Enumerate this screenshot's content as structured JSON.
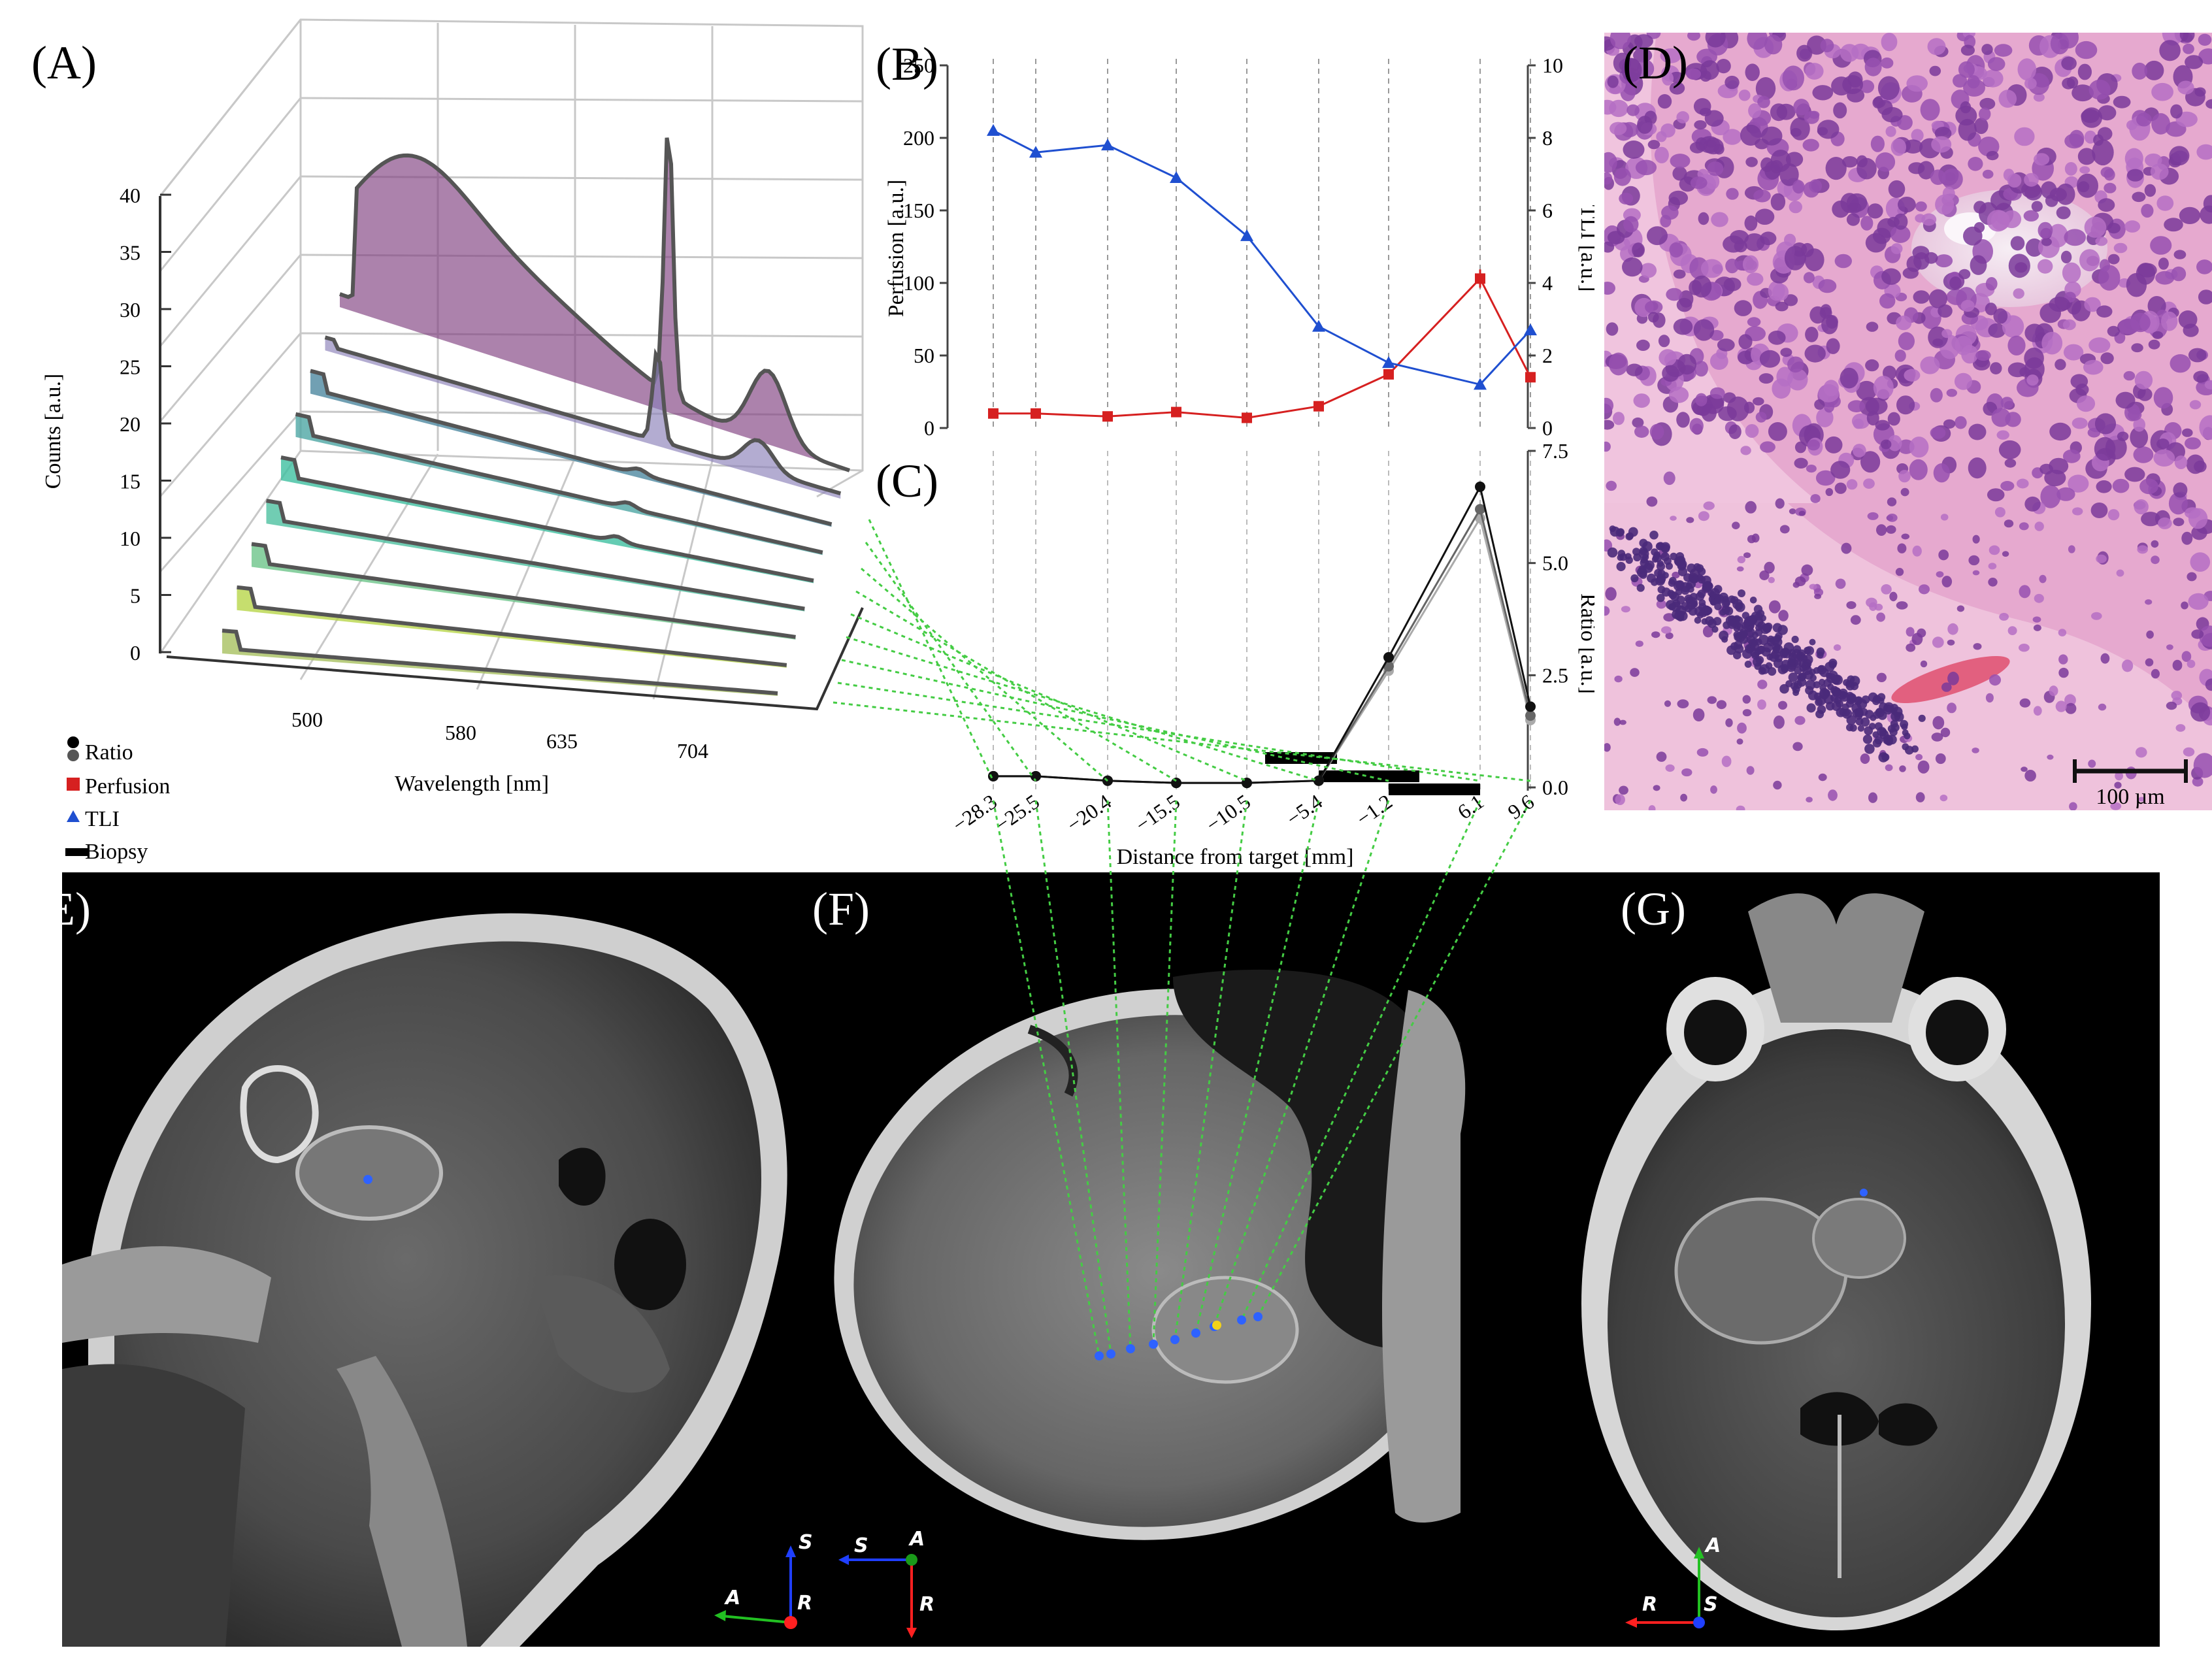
{
  "panel_labels": {
    "A": "(A)",
    "B": "(B)",
    "C": "(C)",
    "D": "(D)",
    "E": "(E)",
    "F": "(F)",
    "G": "(G)"
  },
  "legend": [
    {
      "label": "Ratio",
      "symbol": "circle",
      "color": "#222222"
    },
    {
      "label": "Perfusion",
      "symbol": "square",
      "color": "#d62020"
    },
    {
      "label": "TLI",
      "symbol": "triangle",
      "color": "#1f4fd0"
    },
    {
      "label": "Biopsy",
      "symbol": "bar",
      "color": "#000000"
    }
  ],
  "scale_bar": {
    "label": "100 µm"
  },
  "orientation": {
    "E": {
      "up": "S",
      "left": "A",
      "center": "R"
    },
    "F": {
      "left": "S",
      "center": "A",
      "down": "R"
    },
    "G": {
      "up": "A",
      "left": "R",
      "center": "S"
    }
  },
  "chart_data": [
    {
      "panel": "A",
      "type": "area",
      "xlabel": "Wavelength [nm]",
      "ylabel": "Counts [a.u.]",
      "x_ticks": [
        "500",
        "580",
        "635",
        "704"
      ],
      "y_ticks": [
        "0",
        "5",
        "10",
        "15",
        "20",
        "25",
        "30",
        "35",
        "40"
      ],
      "ylim": [
        0,
        40
      ],
      "series_colors": [
        "#7f3f7f",
        "#8a7fb8",
        "#4e88a0",
        "#4ea6a4",
        "#3fbfa0",
        "#4ec0a0",
        "#6dc489",
        "#b8d64a",
        "#a8c060"
      ]
    },
    {
      "panel": "B",
      "type": "line",
      "ylabel": "Perfusion [a.u.]",
      "y2label": "TLI [a.u.]",
      "ylim": [
        0,
        250
      ],
      "y2lim": [
        0,
        10
      ],
      "y_ticks": [
        "0",
        "50",
        "100",
        "150",
        "200",
        "250"
      ],
      "y2_ticks": [
        "0",
        "2",
        "4",
        "6",
        "8",
        "10"
      ],
      "series": [
        {
          "name": "Perfusion",
          "axis": "left",
          "color": "#d62020",
          "values": [
            10,
            10,
            8,
            11,
            7,
            15,
            37,
            103,
            35
          ]
        },
        {
          "name": "TLI",
          "axis": "right",
          "color": "#1f4fd0",
          "values": [
            8.2,
            7.6,
            7.8,
            6.9,
            5.3,
            2.8,
            1.8,
            1.2,
            2.7
          ]
        }
      ]
    },
    {
      "panel": "C",
      "type": "line",
      "xlabel": "Distance from target [mm]",
      "ylabel": "Ratio [a.u.]",
      "x": [
        -28.3,
        -25.5,
        -20.4,
        -15.5,
        -10.5,
        -5.4,
        -1.2,
        6.1,
        9.6
      ],
      "x_ticks": [
        "−28.3",
        "−25.5",
        "−20.4",
        "−15.5",
        "−10.5",
        "−5.4",
        "−1.2",
        "6.1",
        "9.6"
      ],
      "ylim": [
        0,
        7.5
      ],
      "y_ticks": [
        "0.0",
        "2.5",
        "5.0",
        "7.5"
      ],
      "series": [
        {
          "name": "Ratio",
          "color": "#111111",
          "values": [
            0.25,
            0.25,
            0.15,
            0.1,
            0.1,
            0.15,
            2.9,
            6.7,
            1.8
          ]
        },
        {
          "name": "Ratio",
          "color": "#666666",
          "values": [
            0.25,
            0.25,
            0.15,
            0.1,
            0.1,
            0.15,
            2.7,
            6.2,
            1.6
          ]
        },
        {
          "name": "Ratio",
          "color": "#aaaaaa",
          "values": [
            0.25,
            0.25,
            0.15,
            0.1,
            0.1,
            0.15,
            2.6,
            6.0,
            1.5
          ]
        }
      ],
      "biopsy": [
        [
          -10.5,
          -5.4
        ],
        [
          -5.4,
          -1.2
        ],
        [
          -1.2,
          6.1
        ]
      ]
    }
  ]
}
